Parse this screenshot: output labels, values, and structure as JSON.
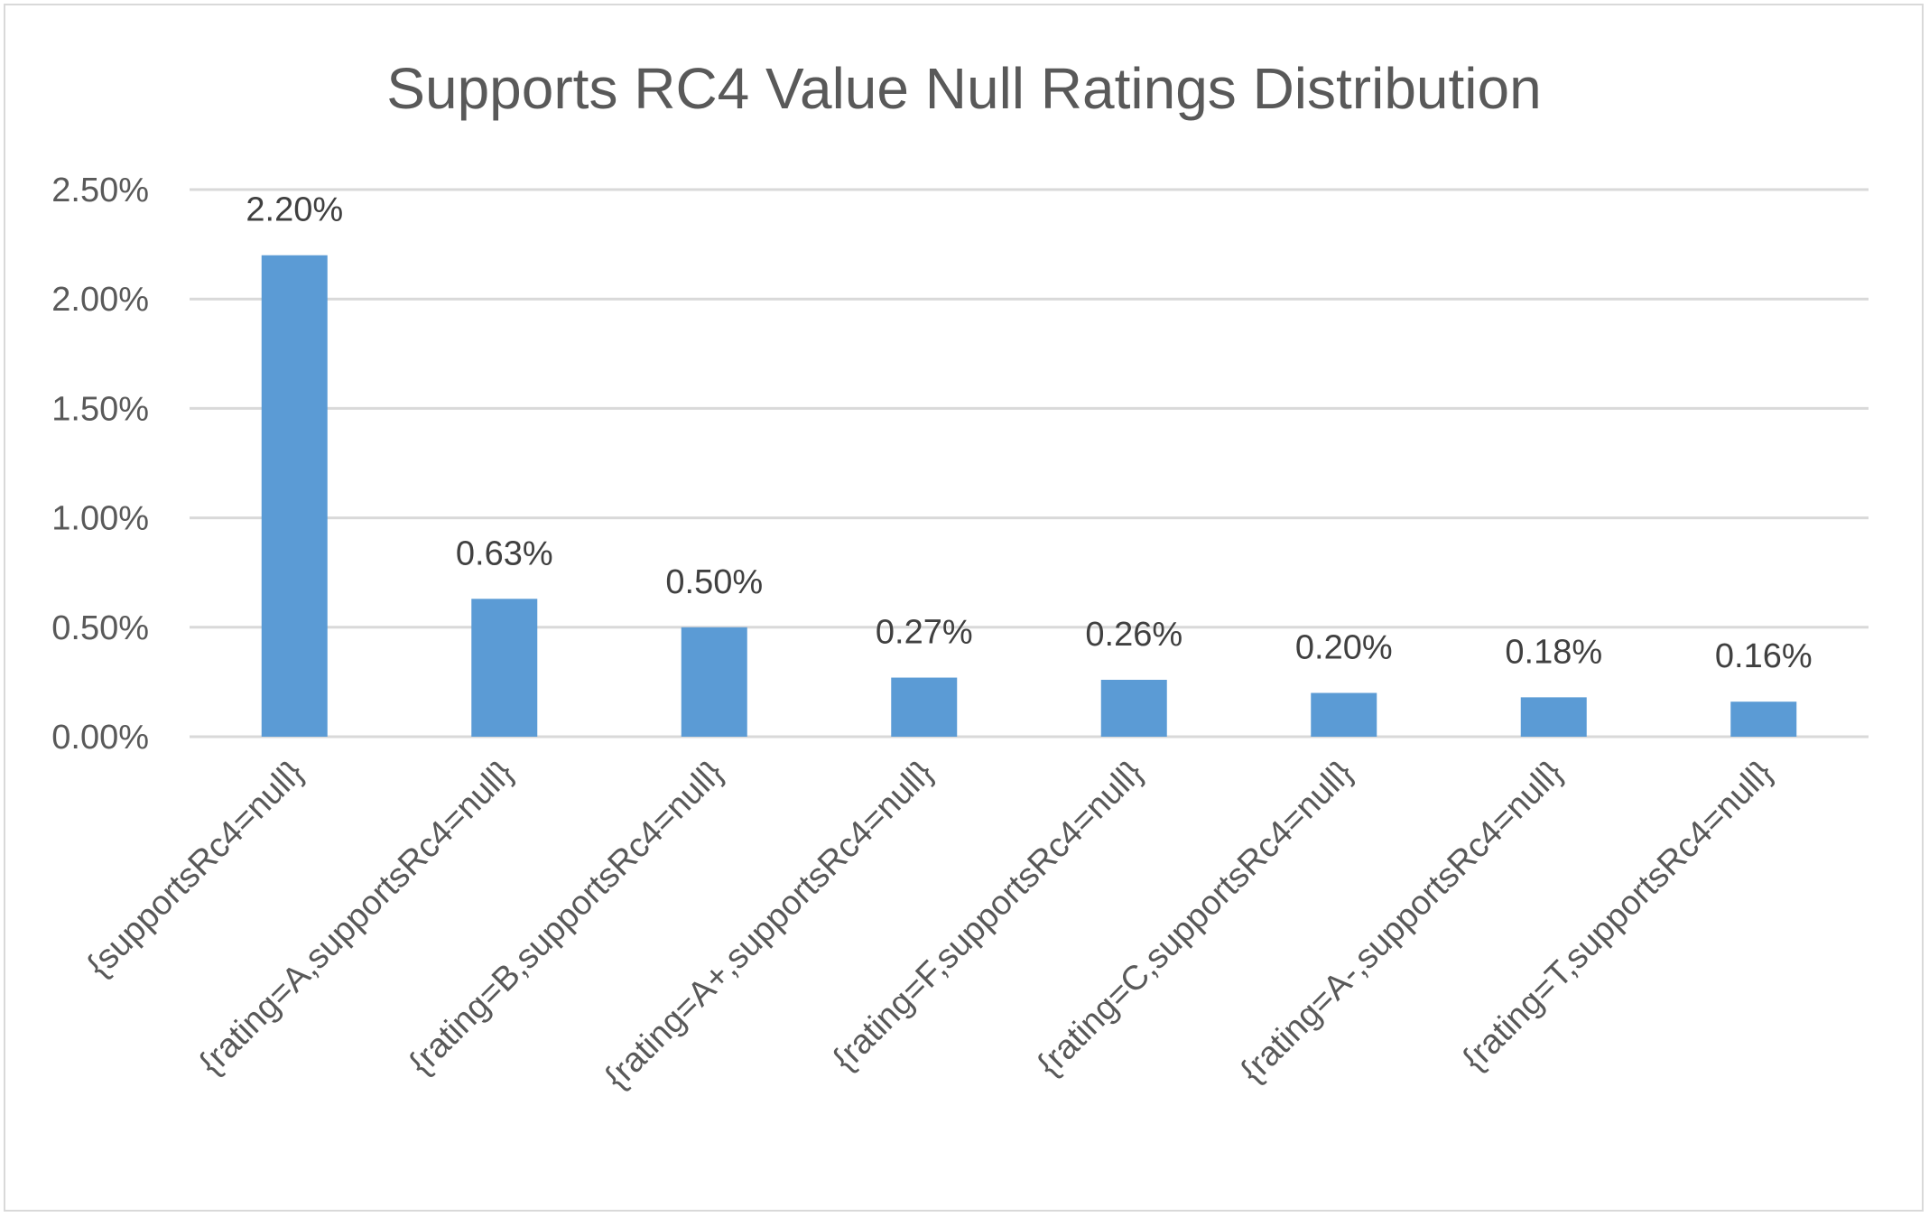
{
  "chart_data": {
    "type": "bar",
    "title": "Supports RC4 Value Null Ratings Distribution",
    "xlabel": "",
    "ylabel": "",
    "ylim": [
      0,
      0.025
    ],
    "ytick_values": [
      0,
      0.005,
      0.01,
      0.015,
      0.02,
      0.025
    ],
    "ytick_labels": [
      "0.00%",
      "0.50%",
      "1.00%",
      "1.50%",
      "2.00%",
      "2.50%"
    ],
    "grid": true,
    "legend": "none",
    "bar_color": "#5b9bd5",
    "categories": [
      "{supportsRc4=null}",
      "{rating=A,supportsRc4=null}",
      "{rating=B,supportsRc4=null}",
      "{rating=A+,supportsRc4=null}",
      "{rating=F,supportsRc4=null}",
      "{rating=C,supportsRc4=null}",
      "{rating=A-,supportsRc4=null}",
      "{rating=T,supportsRc4=null}"
    ],
    "values": [
      0.022,
      0.0063,
      0.005,
      0.0027,
      0.0026,
      0.002,
      0.0018,
      0.0016
    ],
    "data_labels": [
      "2.20%",
      "0.63%",
      "0.50%",
      "0.27%",
      "0.26%",
      "0.20%",
      "0.18%",
      "0.16%"
    ]
  }
}
